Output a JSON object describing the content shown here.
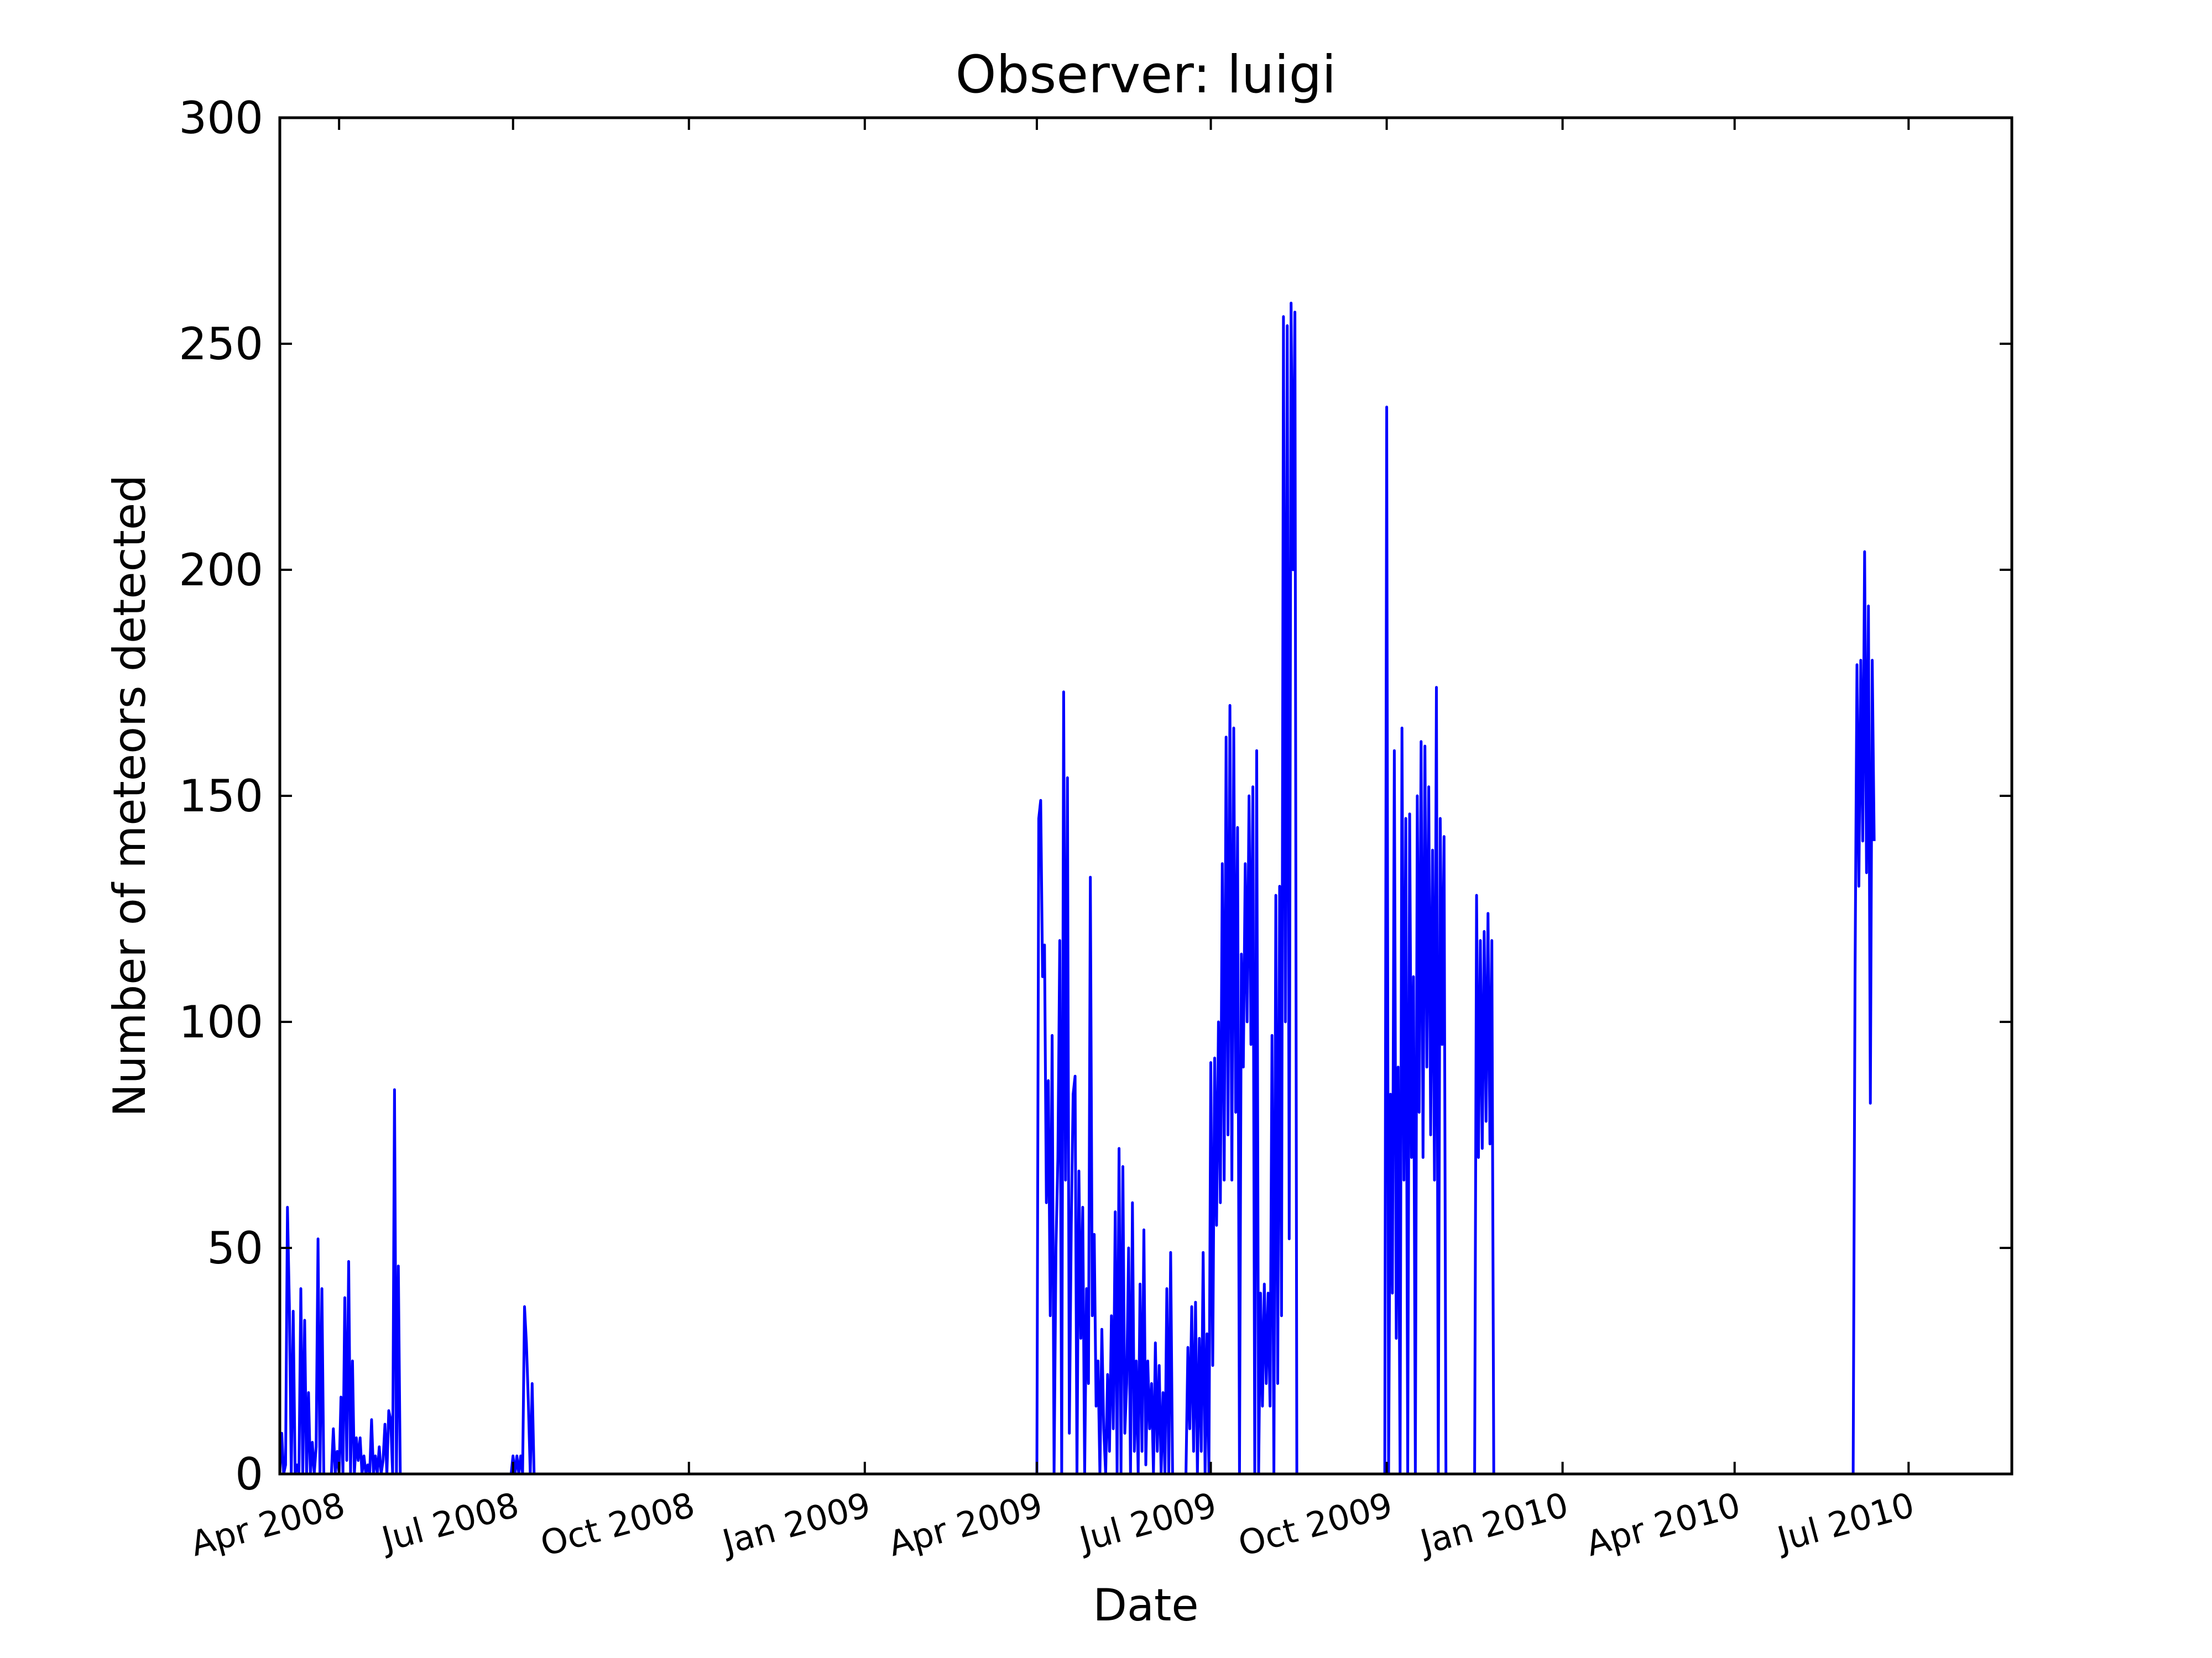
{
  "colors": {
    "series": "#0000ff",
    "axes": "#000000",
    "background": "#ffffff"
  },
  "chart_data": {
    "type": "line",
    "title": "Observer: luigi",
    "xlabel": "Date",
    "ylabel": "Number of meteors detected",
    "x_scale": "date",
    "xlim": [
      "2008-03-01",
      "2010-08-24"
    ],
    "ylim": [
      0,
      300
    ],
    "grid": false,
    "legend": null,
    "yticks": [
      0,
      50,
      100,
      150,
      200,
      250,
      300
    ],
    "ytick_labels": [
      "0",
      "50",
      "100",
      "150",
      "200",
      "250",
      "300"
    ],
    "xticks": [
      {
        "date": "2008-04-01",
        "label": "Apr 2008"
      },
      {
        "date": "2008-07-01",
        "label": "Jul 2008"
      },
      {
        "date": "2008-10-01",
        "label": "Oct 2008"
      },
      {
        "date": "2009-01-01",
        "label": "Jan 2009"
      },
      {
        "date": "2009-04-01",
        "label": "Apr 2009"
      },
      {
        "date": "2009-07-01",
        "label": "Jul 2009"
      },
      {
        "date": "2009-10-01",
        "label": "Oct 2009"
      },
      {
        "date": "2010-01-01",
        "label": "Jan 2010"
      },
      {
        "date": "2010-04-01",
        "label": "Apr 2010"
      },
      {
        "date": "2010-07-01",
        "label": "Jul 2010"
      }
    ],
    "series": [
      {
        "values": [
          [
            "2008-03-01",
            0
          ],
          [
            "2008-03-02",
            9
          ],
          [
            "2008-03-03",
            0
          ],
          [
            "2008-03-04",
            2
          ],
          [
            "2008-03-05",
            59
          ],
          [
            "2008-03-06",
            37
          ],
          [
            "2008-03-07",
            0
          ],
          [
            "2008-03-08",
            36
          ],
          [
            "2008-03-09",
            0
          ],
          [
            "2008-03-10",
            2
          ],
          [
            "2008-03-11",
            0
          ],
          [
            "2008-03-12",
            41
          ],
          [
            "2008-03-13",
            0
          ],
          [
            "2008-03-14",
            34
          ],
          [
            "2008-03-15",
            0
          ],
          [
            "2008-03-16",
            18
          ],
          [
            "2008-03-17",
            0
          ],
          [
            "2008-03-18",
            7
          ],
          [
            "2008-03-19",
            0
          ],
          [
            "2008-03-20",
            6
          ],
          [
            "2008-03-21",
            52
          ],
          [
            "2008-03-22",
            0
          ],
          [
            "2008-03-23",
            41
          ],
          [
            "2008-03-24",
            0
          ],
          [
            "2008-03-25",
            0
          ],
          [
            "2008-03-28",
            0
          ],
          [
            "2008-03-29",
            10
          ],
          [
            "2008-03-30",
            0
          ],
          [
            "2008-03-31",
            5
          ],
          [
            "2008-04-01",
            0
          ],
          [
            "2008-04-02",
            17
          ],
          [
            "2008-04-03",
            0
          ],
          [
            "2008-04-04",
            39
          ],
          [
            "2008-04-05",
            3
          ],
          [
            "2008-04-06",
            47
          ],
          [
            "2008-04-07",
            0
          ],
          [
            "2008-04-08",
            25
          ],
          [
            "2008-04-09",
            0
          ],
          [
            "2008-04-10",
            8
          ],
          [
            "2008-04-11",
            3
          ],
          [
            "2008-04-12",
            8
          ],
          [
            "2008-04-13",
            0
          ],
          [
            "2008-04-14",
            4
          ],
          [
            "2008-04-15",
            0
          ],
          [
            "2008-04-16",
            2
          ],
          [
            "2008-04-17",
            0
          ],
          [
            "2008-04-18",
            12
          ],
          [
            "2008-04-19",
            0
          ],
          [
            "2008-04-20",
            4
          ],
          [
            "2008-04-21",
            0
          ],
          [
            "2008-04-22",
            6
          ],
          [
            "2008-04-23",
            0
          ],
          [
            "2008-04-24",
            3
          ],
          [
            "2008-04-25",
            11
          ],
          [
            "2008-04-26",
            0
          ],
          [
            "2008-04-27",
            14
          ],
          [
            "2008-04-28",
            12
          ],
          [
            "2008-04-29",
            0
          ],
          [
            "2008-04-30",
            85
          ],
          [
            "2008-05-01",
            0
          ],
          [
            "2008-05-02",
            46
          ],
          [
            "2008-05-03",
            0
          ],
          [
            "2008-06-30",
            0
          ],
          [
            "2008-07-01",
            4
          ],
          [
            "2008-07-02",
            0
          ],
          [
            "2008-07-03",
            4
          ],
          [
            "2008-07-04",
            0
          ],
          [
            "2008-07-05",
            4
          ],
          [
            "2008-07-06",
            0
          ],
          [
            "2008-07-07",
            37
          ],
          [
            "2008-07-08",
            29
          ],
          [
            "2008-07-09",
            16
          ],
          [
            "2008-07-10",
            0
          ],
          [
            "2008-07-11",
            20
          ],
          [
            "2008-07-12",
            0
          ],
          [
            "2009-04-01",
            0
          ],
          [
            "2009-04-02",
            145
          ],
          [
            "2009-04-03",
            149
          ],
          [
            "2009-04-04",
            110
          ],
          [
            "2009-04-05",
            117
          ],
          [
            "2009-04-06",
            60
          ],
          [
            "2009-04-07",
            87
          ],
          [
            "2009-04-08",
            35
          ],
          [
            "2009-04-09",
            97
          ],
          [
            "2009-04-10",
            0
          ],
          [
            "2009-04-11",
            50
          ],
          [
            "2009-04-12",
            70
          ],
          [
            "2009-04-13",
            118
          ],
          [
            "2009-04-14",
            0
          ],
          [
            "2009-04-15",
            173
          ],
          [
            "2009-04-16",
            65
          ],
          [
            "2009-04-17",
            154
          ],
          [
            "2009-04-18",
            9
          ],
          [
            "2009-04-19",
            55
          ],
          [
            "2009-04-20",
            84
          ],
          [
            "2009-04-21",
            88
          ],
          [
            "2009-04-22",
            0
          ],
          [
            "2009-04-23",
            67
          ],
          [
            "2009-04-24",
            30
          ],
          [
            "2009-04-25",
            59
          ],
          [
            "2009-04-26",
            0
          ],
          [
            "2009-04-27",
            41
          ],
          [
            "2009-04-28",
            20
          ],
          [
            "2009-04-29",
            132
          ],
          [
            "2009-04-30",
            35
          ],
          [
            "2009-05-01",
            53
          ],
          [
            "2009-05-02",
            15
          ],
          [
            "2009-05-03",
            25
          ],
          [
            "2009-05-04",
            0
          ],
          [
            "2009-05-05",
            32
          ],
          [
            "2009-05-06",
            10
          ],
          [
            "2009-05-07",
            0
          ],
          [
            "2009-05-08",
            22
          ],
          [
            "2009-05-09",
            5
          ],
          [
            "2009-05-10",
            35
          ],
          [
            "2009-05-11",
            10
          ],
          [
            "2009-05-12",
            58
          ],
          [
            "2009-05-13",
            0
          ],
          [
            "2009-05-14",
            72
          ],
          [
            "2009-05-15",
            0
          ],
          [
            "2009-05-16",
            68
          ],
          [
            "2009-05-17",
            9
          ],
          [
            "2009-05-18",
            20
          ],
          [
            "2009-05-19",
            50
          ],
          [
            "2009-05-20",
            0
          ],
          [
            "2009-05-21",
            60
          ],
          [
            "2009-05-22",
            5
          ],
          [
            "2009-05-23",
            25
          ],
          [
            "2009-05-24",
            0
          ],
          [
            "2009-05-25",
            42
          ],
          [
            "2009-05-26",
            5
          ],
          [
            "2009-05-27",
            54
          ],
          [
            "2009-05-28",
            2
          ],
          [
            "2009-05-29",
            25
          ],
          [
            "2009-05-30",
            10
          ],
          [
            "2009-05-31",
            20
          ],
          [
            "2009-06-01",
            0
          ],
          [
            "2009-06-02",
            29
          ],
          [
            "2009-06-03",
            5
          ],
          [
            "2009-06-04",
            24
          ],
          [
            "2009-06-05",
            0
          ],
          [
            "2009-06-06",
            18
          ],
          [
            "2009-06-07",
            0
          ],
          [
            "2009-06-08",
            41
          ],
          [
            "2009-06-09",
            0
          ],
          [
            "2009-06-10",
            49
          ],
          [
            "2009-06-11",
            0
          ],
          [
            "2009-06-12",
            0
          ],
          [
            "2009-06-18",
            0
          ],
          [
            "2009-06-19",
            28
          ],
          [
            "2009-06-20",
            10
          ],
          [
            "2009-06-21",
            37
          ],
          [
            "2009-06-22",
            5
          ],
          [
            "2009-06-23",
            38
          ],
          [
            "2009-06-24",
            0
          ],
          [
            "2009-06-25",
            30
          ],
          [
            "2009-06-26",
            5
          ],
          [
            "2009-06-27",
            49
          ],
          [
            "2009-06-28",
            0
          ],
          [
            "2009-06-29",
            31
          ],
          [
            "2009-06-30",
            0
          ],
          [
            "2009-07-01",
            91
          ],
          [
            "2009-07-02",
            24
          ],
          [
            "2009-07-03",
            92
          ],
          [
            "2009-07-04",
            55
          ],
          [
            "2009-07-05",
            100
          ],
          [
            "2009-07-06",
            60
          ],
          [
            "2009-07-07",
            135
          ],
          [
            "2009-07-08",
            65
          ],
          [
            "2009-07-09",
            163
          ],
          [
            "2009-07-10",
            75
          ],
          [
            "2009-07-11",
            170
          ],
          [
            "2009-07-12",
            65
          ],
          [
            "2009-07-13",
            165
          ],
          [
            "2009-07-14",
            80
          ],
          [
            "2009-07-15",
            143
          ],
          [
            "2009-07-16",
            0
          ],
          [
            "2009-07-17",
            115
          ],
          [
            "2009-07-18",
            90
          ],
          [
            "2009-07-19",
            135
          ],
          [
            "2009-07-20",
            100
          ],
          [
            "2009-07-21",
            150
          ],
          [
            "2009-07-22",
            95
          ],
          [
            "2009-07-23",
            152
          ],
          [
            "2009-07-24",
            0
          ],
          [
            "2009-07-25",
            160
          ],
          [
            "2009-07-26",
            0
          ],
          [
            "2009-07-27",
            40
          ],
          [
            "2009-07-28",
            15
          ],
          [
            "2009-07-29",
            42
          ],
          [
            "2009-07-30",
            20
          ],
          [
            "2009-07-31",
            40
          ],
          [
            "2009-08-01",
            15
          ],
          [
            "2009-08-02",
            97
          ],
          [
            "2009-08-03",
            0
          ],
          [
            "2009-08-04",
            128
          ],
          [
            "2009-08-05",
            20
          ],
          [
            "2009-08-06",
            130
          ],
          [
            "2009-08-07",
            35
          ],
          [
            "2009-08-08",
            256
          ],
          [
            "2009-08-09",
            100
          ],
          [
            "2009-08-10",
            254
          ],
          [
            "2009-08-11",
            52
          ],
          [
            "2009-08-12",
            259
          ],
          [
            "2009-08-13",
            200
          ],
          [
            "2009-08-14",
            257
          ],
          [
            "2009-08-15",
            0
          ],
          [
            "2009-09-30",
            0
          ],
          [
            "2009-10-01",
            236
          ],
          [
            "2009-10-02",
            0
          ],
          [
            "2009-10-03",
            84
          ],
          [
            "2009-10-04",
            40
          ],
          [
            "2009-10-05",
            160
          ],
          [
            "2009-10-06",
            30
          ],
          [
            "2009-10-07",
            90
          ],
          [
            "2009-10-08",
            0
          ],
          [
            "2009-10-09",
            165
          ],
          [
            "2009-10-10",
            65
          ],
          [
            "2009-10-11",
            145
          ],
          [
            "2009-10-12",
            0
          ],
          [
            "2009-10-13",
            146
          ],
          [
            "2009-10-14",
            70
          ],
          [
            "2009-10-15",
            110
          ],
          [
            "2009-10-16",
            0
          ],
          [
            "2009-10-17",
            150
          ],
          [
            "2009-10-18",
            80
          ],
          [
            "2009-10-19",
            162
          ],
          [
            "2009-10-20",
            70
          ],
          [
            "2009-10-21",
            161
          ],
          [
            "2009-10-22",
            90
          ],
          [
            "2009-10-23",
            152
          ],
          [
            "2009-10-24",
            75
          ],
          [
            "2009-10-25",
            138
          ],
          [
            "2009-10-26",
            65
          ],
          [
            "2009-10-27",
            174
          ],
          [
            "2009-10-28",
            0
          ],
          [
            "2009-10-29",
            145
          ],
          [
            "2009-10-30",
            95
          ],
          [
            "2009-10-31",
            141
          ],
          [
            "2009-11-01",
            0
          ],
          [
            "2009-11-16",
            0
          ],
          [
            "2009-11-17",
            128
          ],
          [
            "2009-11-18",
            70
          ],
          [
            "2009-11-19",
            118
          ],
          [
            "2009-11-20",
            72
          ],
          [
            "2009-11-21",
            120
          ],
          [
            "2009-11-22",
            78
          ],
          [
            "2009-11-23",
            124
          ],
          [
            "2009-11-24",
            73
          ],
          [
            "2009-11-25",
            118
          ],
          [
            "2009-11-26",
            0
          ],
          [
            "2010-06-02",
            0
          ],
          [
            "2010-06-03",
            110
          ],
          [
            "2010-06-04",
            179
          ],
          [
            "2010-06-05",
            130
          ],
          [
            "2010-06-06",
            180
          ],
          [
            "2010-06-07",
            140
          ],
          [
            "2010-06-08",
            204
          ],
          [
            "2010-06-09",
            133
          ],
          [
            "2010-06-10",
            192
          ],
          [
            "2010-06-11",
            82
          ],
          [
            "2010-06-12",
            180
          ],
          [
            "2010-06-13",
            140
          ]
        ]
      }
    ]
  }
}
